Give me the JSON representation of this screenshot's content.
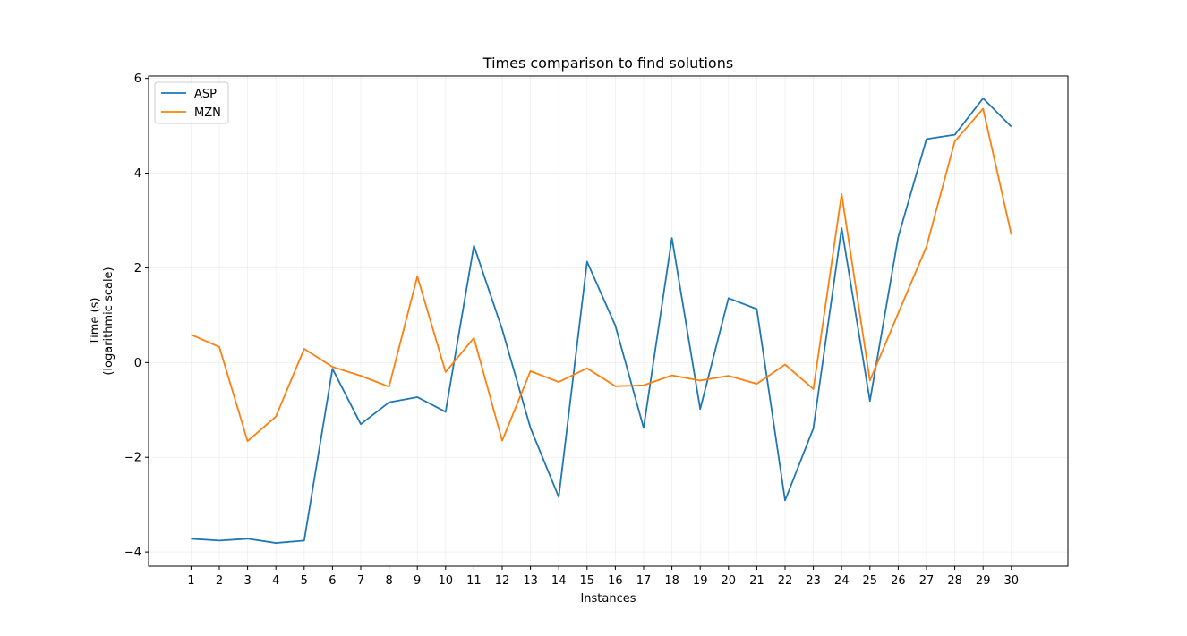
{
  "chart_data": {
    "type": "line",
    "title": "Times comparison to find solutions",
    "xlabel": "Instances",
    "ylabel_line1": "Time (s)",
    "ylabel_line2": "(logarithmic scale)",
    "x": [
      1,
      2,
      3,
      4,
      5,
      6,
      7,
      8,
      9,
      10,
      11,
      12,
      13,
      14,
      15,
      16,
      17,
      18,
      19,
      20,
      21,
      22,
      23,
      24,
      25,
      26,
      27,
      28,
      29,
      30
    ],
    "xlim": [
      -0.5,
      32
    ],
    "ylim": [
      -4.3,
      6.05
    ],
    "yticks": [
      -4,
      -2,
      0,
      2,
      4,
      6
    ],
    "yticklabels": [
      "−4",
      "−2",
      "0",
      "2",
      "4",
      "6"
    ],
    "grid": true,
    "legend_position": "top-left",
    "series": [
      {
        "name": "ASP",
        "color": "#1f77b4",
        "values": [
          -3.72,
          -3.76,
          -3.72,
          -3.81,
          -3.76,
          -0.13,
          -1.3,
          -0.84,
          -0.73,
          -1.04,
          2.47,
          0.7,
          -1.38,
          -2.84,
          2.13,
          0.78,
          -1.38,
          2.63,
          -0.98,
          1.36,
          1.13,
          -2.91,
          -1.39,
          2.84,
          -0.81,
          2.65,
          4.72,
          4.81,
          5.58,
          4.98
        ]
      },
      {
        "name": "MZN",
        "color": "#ff7f0e",
        "values": [
          0.59,
          0.33,
          -1.66,
          -1.14,
          0.29,
          -0.09,
          -0.28,
          -0.51,
          1.82,
          -0.2,
          0.52,
          -1.65,
          -0.18,
          -0.41,
          -0.12,
          -0.5,
          -0.48,
          -0.27,
          -0.38,
          -0.28,
          -0.45,
          -0.04,
          -0.56,
          3.56,
          -0.38,
          1.04,
          2.45,
          4.67,
          5.36,
          2.7
        ]
      }
    ]
  }
}
